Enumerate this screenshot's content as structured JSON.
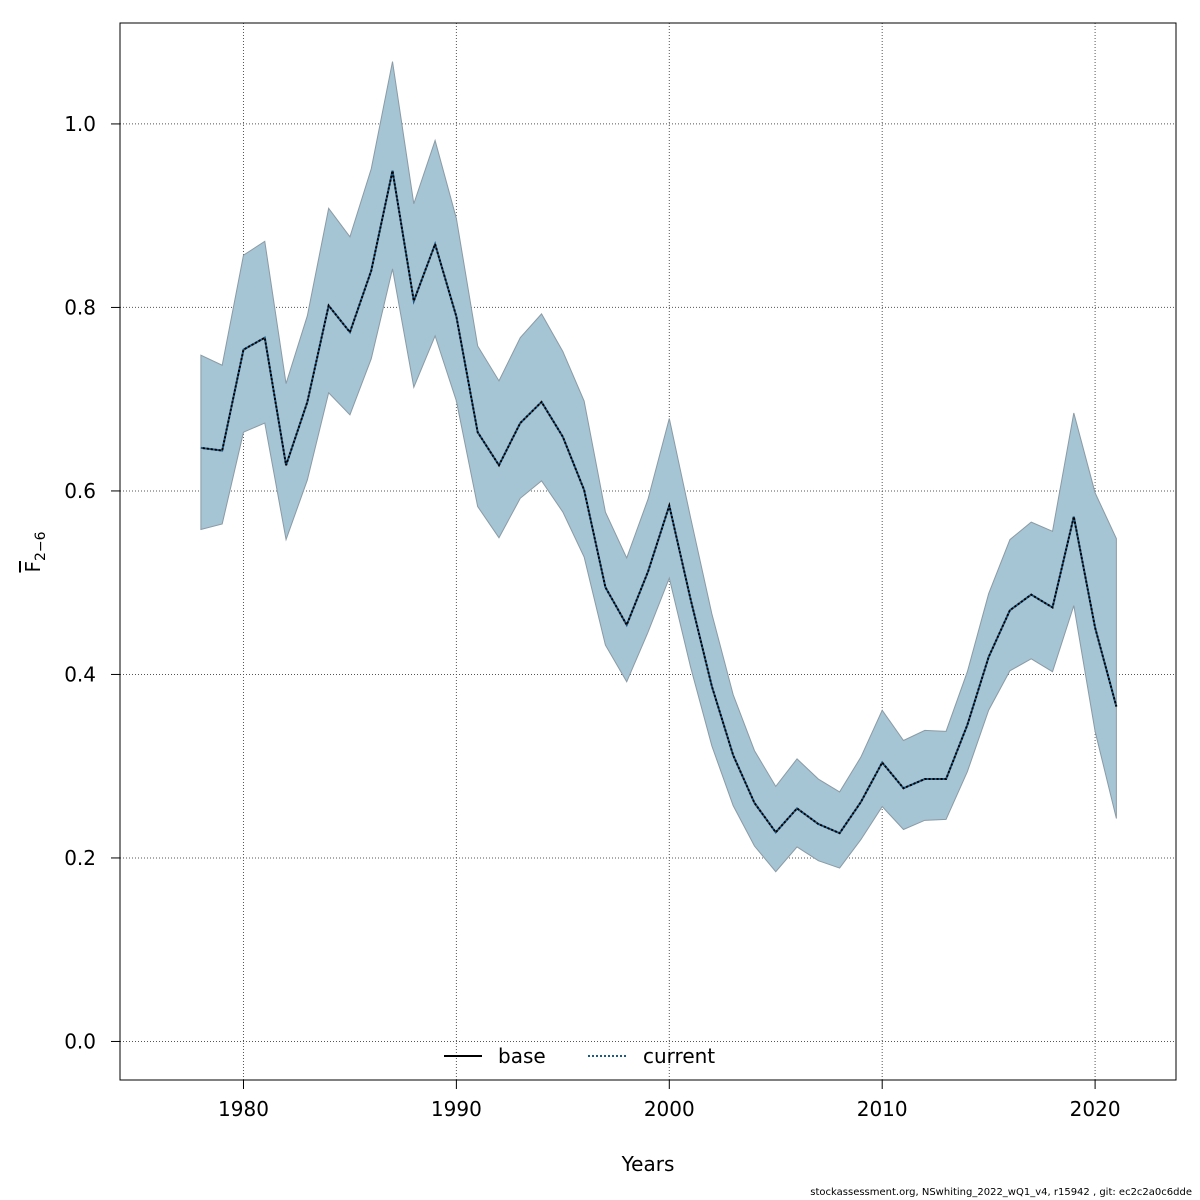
{
  "footer_text": "stockassessment.org, NSwhiting_2022_wQ1_v4, r15942 , git: ec2c2a0c6dde",
  "colors": {
    "ci_fill": "#a5c4d4",
    "ci_stroke": "#8a9ba5",
    "base_line": "#000000",
    "current_line": "#1f5a85",
    "grid": "#555555"
  },
  "chart_data": {
    "type": "line",
    "xlabel": "Years",
    "ylabel_main": "F",
    "ylabel_sub": "2−6",
    "xlim": [
      1974.2,
      2023.8
    ],
    "ylim": [
      -0.042,
      1.11
    ],
    "xticks": [
      1980,
      1990,
      2000,
      2010,
      2020
    ],
    "yticks": [
      0.0,
      0.2,
      0.4,
      0.6,
      0.8,
      1.0
    ],
    "ytick_labels": [
      "0.0",
      "0.2",
      "0.4",
      "0.6",
      "0.8",
      "1.0"
    ],
    "grid": true,
    "legend_position": "bottom-center",
    "x": [
      1978,
      1979,
      1980,
      1981,
      1982,
      1983,
      1984,
      1985,
      1986,
      1987,
      1988,
      1989,
      1990,
      1991,
      1992,
      1993,
      1994,
      1995,
      1996,
      1997,
      1998,
      1999,
      2000,
      2001,
      2002,
      2003,
      2004,
      2005,
      2006,
      2007,
      2008,
      2009,
      2010,
      2011,
      2012,
      2013,
      2014,
      2015,
      2016,
      2017,
      2018,
      2019,
      2020,
      2021
    ],
    "ci_upper": [
      0.748,
      0.737,
      0.857,
      0.872,
      0.717,
      0.791,
      0.908,
      0.877,
      0.951,
      1.068,
      0.913,
      0.982,
      0.897,
      0.758,
      0.72,
      0.767,
      0.793,
      0.752,
      0.698,
      0.577,
      0.527,
      0.591,
      0.679,
      0.571,
      0.466,
      0.378,
      0.317,
      0.278,
      0.308,
      0.286,
      0.272,
      0.31,
      0.361,
      0.328,
      0.339,
      0.338,
      0.403,
      0.488,
      0.547,
      0.566,
      0.556,
      0.685,
      0.598,
      0.548
    ],
    "ci_lower": [
      0.558,
      0.564,
      0.664,
      0.674,
      0.547,
      0.612,
      0.707,
      0.683,
      0.744,
      0.842,
      0.713,
      0.769,
      0.698,
      0.583,
      0.549,
      0.592,
      0.611,
      0.577,
      0.528,
      0.432,
      0.392,
      0.446,
      0.505,
      0.408,
      0.322,
      0.257,
      0.213,
      0.185,
      0.212,
      0.197,
      0.189,
      0.22,
      0.256,
      0.231,
      0.241,
      0.242,
      0.294,
      0.361,
      0.404,
      0.417,
      0.403,
      0.475,
      0.338,
      0.243
    ],
    "series": [
      {
        "name": "base",
        "style": "solid",
        "values": [
          0.647,
          0.644,
          0.754,
          0.767,
          0.628,
          0.697,
          0.802,
          0.773,
          0.84,
          0.949,
          0.807,
          0.869,
          0.79,
          0.664,
          0.628,
          0.674,
          0.697,
          0.659,
          0.601,
          0.495,
          0.454,
          0.512,
          0.584,
          0.482,
          0.387,
          0.312,
          0.26,
          0.228,
          0.254,
          0.237,
          0.227,
          0.261,
          0.304,
          0.276,
          0.286,
          0.286,
          0.345,
          0.419,
          0.47,
          0.487,
          0.473,
          0.572,
          0.451,
          0.365
        ]
      },
      {
        "name": "current",
        "style": "dotted",
        "values": [
          0.647,
          0.644,
          0.754,
          0.767,
          0.628,
          0.697,
          0.802,
          0.773,
          0.84,
          0.949,
          0.807,
          0.869,
          0.79,
          0.664,
          0.628,
          0.674,
          0.697,
          0.659,
          0.601,
          0.495,
          0.454,
          0.512,
          0.584,
          0.482,
          0.387,
          0.312,
          0.26,
          0.228,
          0.254,
          0.237,
          0.227,
          0.261,
          0.304,
          0.276,
          0.286,
          0.286,
          0.345,
          0.419,
          0.47,
          0.487,
          0.473,
          0.572,
          0.451,
          0.365
        ]
      }
    ]
  }
}
